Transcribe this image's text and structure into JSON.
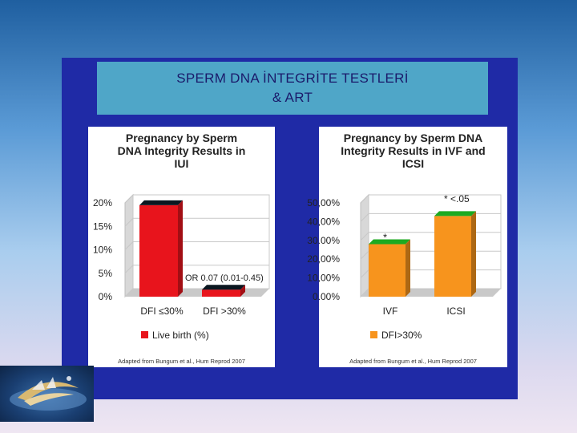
{
  "slide": {
    "title_line1": "SPERM DNA İNTEGRİTE TESTLERİ",
    "title_line2": "& ART"
  },
  "colors": {
    "panel": "#1f2aa6",
    "title_box": "#4fa6c8",
    "bar_red": "#e8141c",
    "bar_orange": "#f7941d"
  },
  "logo": {
    "icon": "crescent-ship-logo-icon"
  },
  "chart_data": [
    {
      "type": "bar",
      "title": "Pregnancy by Sperm DNA Integrity Results in IUI",
      "title_lines": [
        "Pregnancy by Sperm",
        "DNA Integrity Results in",
        "IUI"
      ],
      "categories": [
        "DFI ≤30%",
        "DFI >30%"
      ],
      "series": [
        {
          "name": "Live birth (%)",
          "values": [
            19.5,
            1.5
          ]
        }
      ],
      "yticks": [
        "0%",
        "5%",
        "10%",
        "15%",
        "20%"
      ],
      "ylim": [
        0,
        20
      ],
      "annotation": "OR 0.07 (0.01-0.45)",
      "footnote": "Adapted from Bungum et al., Hum Reprod 2007",
      "legend_position": "bottom",
      "grid": true,
      "style": "3d"
    },
    {
      "type": "bar",
      "title": "Pregnancy by Sperm DNA Integrity Results in IVF and ICSI",
      "title_lines": [
        "Pregnancy by Sperm DNA",
        "Integrity Results in IVF and",
        "ICSI"
      ],
      "categories": [
        "IVF",
        "ICSI"
      ],
      "series": [
        {
          "name": "DFI>30%",
          "values": [
            28,
            43
          ]
        }
      ],
      "yticks": [
        "0.00%",
        "10,00%",
        "20,00%",
        "30.00%",
        "40,00%",
        "50,00%"
      ],
      "ylim": [
        0,
        50
      ],
      "annotation": "* <.05",
      "bar_marker": "*",
      "footnote": "Adapted from Bungum et al., Hum Reprod 2007",
      "legend_position": "bottom",
      "grid": true,
      "style": "3d"
    }
  ]
}
